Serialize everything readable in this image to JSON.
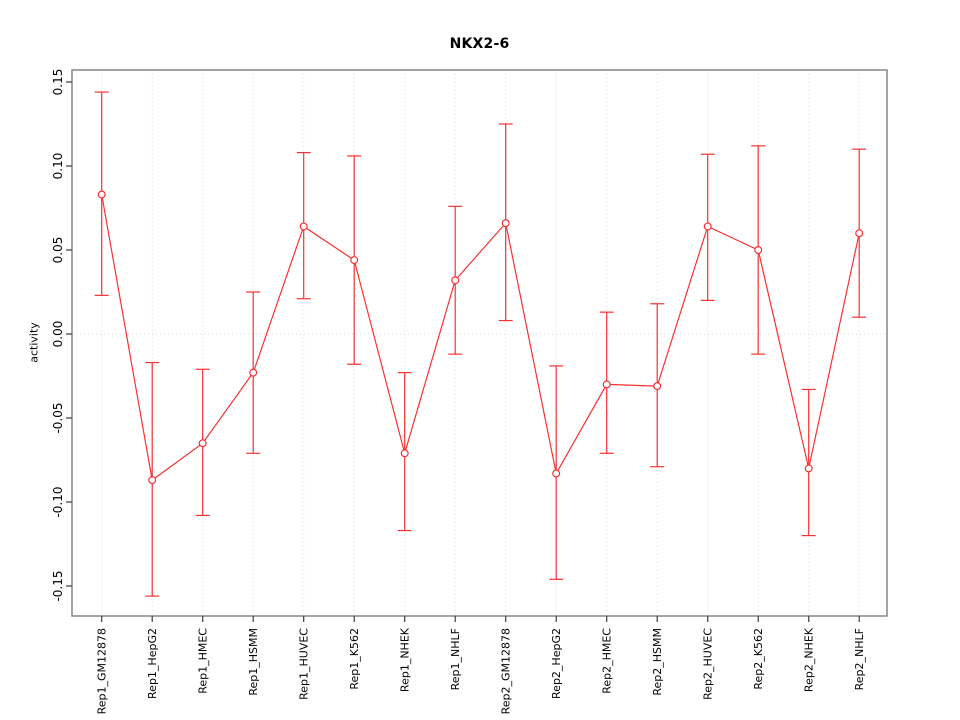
{
  "chart_data": {
    "type": "line",
    "title": "NKX2-6",
    "xlabel": "",
    "ylabel": "activity",
    "legend": "none",
    "grid": {
      "vertical_dotted_at_each_category": true,
      "horizontal_dotted_at_zero": true
    },
    "marker": "open-circle",
    "error_bars": true,
    "ylim": [
      -0.168,
      0.157
    ],
    "yticks": [
      -0.15,
      -0.1,
      -0.05,
      0.0,
      0.05,
      0.1,
      0.15
    ],
    "ytick_labels": [
      "-0.15",
      "-0.10",
      "-0.05",
      "0.00",
      "0.05",
      "0.10",
      "0.15"
    ],
    "categories": [
      "Rep1_GM12878",
      "Rep1_HepG2",
      "Rep1_HMEC",
      "Rep1_HSMM",
      "Rep1_HUVEC",
      "Rep1_K562",
      "Rep1_NHEK",
      "Rep1_NHLF",
      "Rep2_GM12878",
      "Rep2_HepG2",
      "Rep2_HMEC",
      "Rep2_HSMM",
      "Rep2_HUVEC",
      "Rep2_K562",
      "Rep2_NHEK",
      "Rep2_NHLF"
    ],
    "values": [
      0.083,
      -0.087,
      -0.065,
      -0.023,
      0.064,
      0.044,
      -0.071,
      0.032,
      0.066,
      -0.083,
      -0.03,
      -0.031,
      0.064,
      0.05,
      -0.08,
      0.06
    ],
    "error_low": [
      0.023,
      -0.156,
      -0.108,
      -0.071,
      0.021,
      -0.018,
      -0.117,
      -0.012,
      0.008,
      -0.146,
      -0.071,
      -0.079,
      0.02,
      -0.012,
      -0.12,
      0.01
    ],
    "error_high": [
      0.144,
      -0.017,
      -0.021,
      0.025,
      0.108,
      0.106,
      -0.023,
      0.076,
      0.125,
      -0.019,
      0.013,
      0.018,
      0.107,
      0.112,
      -0.033,
      0.11
    ],
    "colors": {
      "series": "#f53232",
      "grid": "#d9d9d9",
      "box": "#868686",
      "tick": "#3c3c3c",
      "text": "#000000",
      "background": "#ffffff"
    }
  }
}
